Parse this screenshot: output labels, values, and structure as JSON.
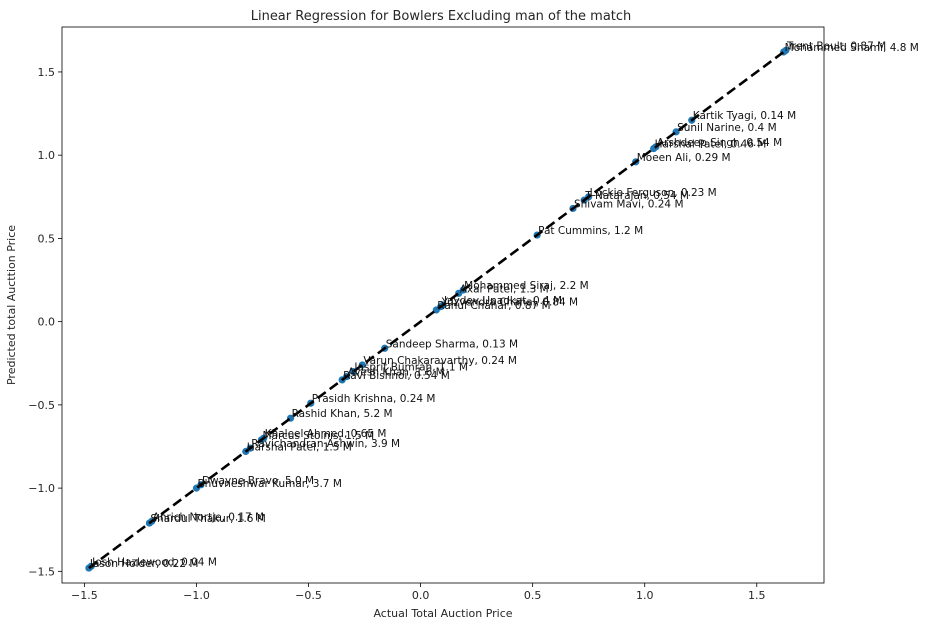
{
  "chart_data": {
    "type": "scatter",
    "title": "Linear Regression for Bowlers Excluding man of the match",
    "xlabel": "Actual Total Auction Price",
    "ylabel": "Predicted total Aucttion Price",
    "xlim": [
      -1.6,
      1.8
    ],
    "ylim": [
      -1.57,
      1.77
    ],
    "xticks": [
      -1.5,
      -1.0,
      -0.5,
      0.0,
      0.5,
      1.0,
      1.5
    ],
    "xtick_labels": [
      "−1.5",
      "−1.0",
      "−0.5",
      "0.0",
      "0.5",
      "1.0",
      "1.5"
    ],
    "yticks": [
      -1.5,
      -1.0,
      -0.5,
      0.0,
      0.5,
      1.0,
      1.5
    ],
    "ytick_labels": [
      "−1.5",
      "−1.0",
      "−0.5",
      "0.0",
      "0.5",
      "1.0",
      "1.5"
    ],
    "grid": false,
    "point_color": "#1f77b4",
    "fit_line": {
      "style": "dashed",
      "color": "#000000",
      "x": [
        -1.48,
        1.63
      ],
      "y": [
        -1.48,
        1.63
      ]
    },
    "points": [
      {
        "x": 1.63,
        "y": 1.63,
        "label": "Trent Boult, 0.87 M"
      },
      {
        "x": 1.62,
        "y": 1.62,
        "label": "Mohammed Shami, 4.8 M"
      },
      {
        "x": 1.21,
        "y": 1.21,
        "label": "Kartik Tyagi, 0.14 M"
      },
      {
        "x": 1.14,
        "y": 1.14,
        "label": "Sunil Narine, 0.4 M"
      },
      {
        "x": 1.05,
        "y": 1.05,
        "label": "Arshdeep Singh, 0.54 M"
      },
      {
        "x": 1.04,
        "y": 1.04,
        "label": "Harshal Patel, 0.46 M"
      },
      {
        "x": 0.96,
        "y": 0.96,
        "label": "Moeen Ali, 0.29 M"
      },
      {
        "x": 0.75,
        "y": 0.75,
        "label": "Lockie Ferguson, 0.23 M"
      },
      {
        "x": 0.73,
        "y": 0.73,
        "label": "T Natarajan, 0.54 M"
      },
      {
        "x": 0.68,
        "y": 0.68,
        "label": "Shivam Mavi, 0.24 M"
      },
      {
        "x": 0.52,
        "y": 0.52,
        "label": "Pat Cummins, 1.2 M"
      },
      {
        "x": 0.19,
        "y": 0.19,
        "label": "Mohammed Siraj, 2.2 M"
      },
      {
        "x": 0.17,
        "y": 0.17,
        "label": "Axar Patel, 1.3 M"
      },
      {
        "x": 0.1,
        "y": 0.1,
        "label": "Jaydev Unadkat, 0.4 M"
      },
      {
        "x": 0.09,
        "y": 0.09,
        "label": "Yuzvendra Chahal, 0.84 M"
      },
      {
        "x": 0.07,
        "y": 0.07,
        "label": "Rahul Chahar, 0.87 M"
      },
      {
        "x": -0.16,
        "y": -0.16,
        "label": "Sandeep Sharma, 0.13 M"
      },
      {
        "x": -0.26,
        "y": -0.26,
        "label": "Varun Chakaravarthy, 0.24 M"
      },
      {
        "x": -0.3,
        "y": -0.3,
        "label": "Jasprit Bumrah, 1.1 M"
      },
      {
        "x": -0.33,
        "y": -0.33,
        "label": "Avesh Khan, 1.6 M"
      },
      {
        "x": -0.35,
        "y": -0.35,
        "label": "Ravi Bishnoi, 0.54 M"
      },
      {
        "x": -0.49,
        "y": -0.49,
        "label": "Prasidh Krishna, 0.24 M"
      },
      {
        "x": -0.58,
        "y": -0.58,
        "label": "Rashid Khan, 5.2 M"
      },
      {
        "x": -0.7,
        "y": -0.7,
        "label": "Khaleel Ahmed, 0.65 M"
      },
      {
        "x": -0.71,
        "y": -0.71,
        "label": "Marcus Stoinis, 1.5 M"
      },
      {
        "x": -0.76,
        "y": -0.76,
        "label": "Ravichandran Ashwin, 3.9 M"
      },
      {
        "x": -0.78,
        "y": -0.78,
        "label": "Harshal Patel, 1.5 M"
      },
      {
        "x": -0.98,
        "y": -0.98,
        "label": "Dwayne Bravo, 5.0 M"
      },
      {
        "x": -1.0,
        "y": -1.0,
        "label": "Bhuvneshwar Kumar, 3.7 M"
      },
      {
        "x": -1.2,
        "y": -1.2,
        "label": "Anrich Nortje, 0.17 M"
      },
      {
        "x": -1.21,
        "y": -1.21,
        "label": "Shardul Thakur, 1.6 M"
      },
      {
        "x": -1.47,
        "y": -1.47,
        "label": "Josh Hazlewood, 0.04 M"
      },
      {
        "x": -1.48,
        "y": -1.48,
        "label": "Jason Holder, 0.22 M"
      }
    ]
  }
}
